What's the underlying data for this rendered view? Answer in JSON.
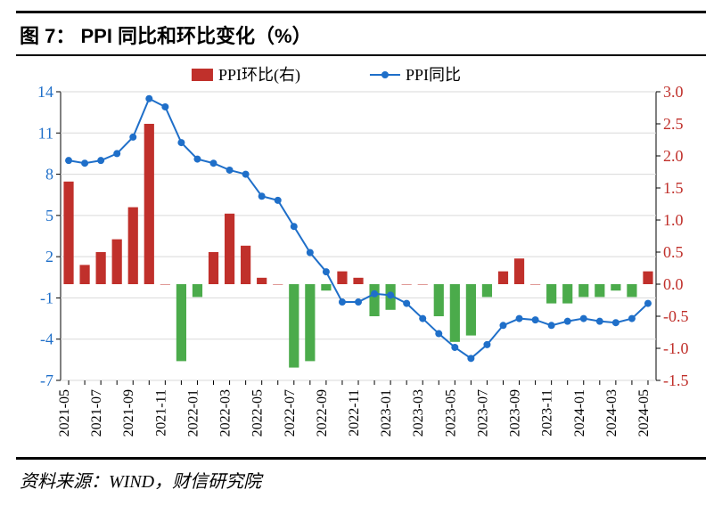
{
  "title": {
    "prefix": "图 7：",
    "text": "PPI 同比和环比变化（%）"
  },
  "source": "资料来源：WIND，财信研究院",
  "chart": {
    "type": "bar+line dual-axis",
    "background_color": "#ffffff",
    "grid_color": "#d9d9d9",
    "axis_color": "#000000",
    "left_axis": {
      "color": "#1f6fc9",
      "min": -7,
      "max": 14,
      "ticks": [
        -7,
        -4,
        -1,
        2,
        5,
        8,
        11,
        14
      ],
      "label": null
    },
    "right_axis": {
      "color": "#c0302b",
      "min": -1.5,
      "max": 3.0,
      "ticks": [
        -1.5,
        -1.0,
        -0.5,
        0.0,
        0.5,
        1.0,
        1.5,
        2.0,
        2.5,
        3.0
      ],
      "label": null
    },
    "x_labels_visible": [
      "2021-05",
      "2021-07",
      "2021-09",
      "2021-11",
      "2022-01",
      "2022-03",
      "2022-05",
      "2022-07",
      "2022-09",
      "2022-11",
      "2023-01",
      "2023-03",
      "2023-05",
      "2023-07",
      "2023-09",
      "2023-11",
      "2024-01",
      "2024-03",
      "2024-05"
    ],
    "periods": [
      "2021-05",
      "2021-06",
      "2021-07",
      "2021-08",
      "2021-09",
      "2021-10",
      "2021-11",
      "2021-12",
      "2022-01",
      "2022-02",
      "2022-03",
      "2022-04",
      "2022-05",
      "2022-06",
      "2022-07",
      "2022-08",
      "2022-09",
      "2022-10",
      "2022-11",
      "2022-12",
      "2023-01",
      "2023-02",
      "2023-03",
      "2023-04",
      "2023-05",
      "2023-06",
      "2023-07",
      "2023-08",
      "2023-09",
      "2023-10",
      "2023-11",
      "2023-12",
      "2024-01",
      "2024-02",
      "2024-03",
      "2024-04",
      "2024-05"
    ],
    "bars": {
      "name_legend": "PPI环比(右)",
      "use_right_axis": true,
      "width": 0.62,
      "pos_color": "#c0302b",
      "neg_color": "#4bab4b",
      "values": [
        1.6,
        0.3,
        0.5,
        0.7,
        1.2,
        2.5,
        0.0,
        -1.2,
        -0.2,
        0.5,
        1.1,
        0.6,
        0.1,
        0.0,
        -1.3,
        -1.2,
        -0.1,
        0.2,
        0.1,
        -0.5,
        -0.4,
        0.0,
        0.0,
        -0.5,
        -0.9,
        -0.8,
        -0.2,
        0.2,
        0.4,
        0.0,
        -0.3,
        -0.3,
        -0.2,
        -0.2,
        -0.1,
        -0.2,
        0.2
      ]
    },
    "line": {
      "name_legend": "PPI同比",
      "use_right_axis": false,
      "color": "#1f6fc9",
      "marker_color": "#1f6fc9",
      "marker_size": 4.0,
      "width": 2.0,
      "values": [
        9.0,
        8.8,
        9.0,
        9.5,
        10.7,
        13.5,
        12.9,
        10.3,
        9.1,
        8.8,
        8.3,
        8.0,
        6.4,
        6.1,
        4.2,
        2.3,
        0.9,
        -1.3,
        -1.3,
        -0.7,
        -0.8,
        -1.4,
        -2.5,
        -3.6,
        -4.6,
        -5.4,
        -4.4,
        -3.0,
        -2.5,
        -2.6,
        -3.0,
        -2.7,
        -2.5,
        -2.7,
        -2.8,
        -2.5,
        -1.4
      ]
    },
    "legend": {
      "y": 0,
      "items": [
        {
          "type": "bar",
          "key": "bars",
          "label": "PPI环比(右)",
          "swatch_color": "#c0302b"
        },
        {
          "type": "line",
          "key": "line",
          "label": "PPI同比",
          "swatch_color": "#1f6fc9"
        }
      ]
    }
  }
}
